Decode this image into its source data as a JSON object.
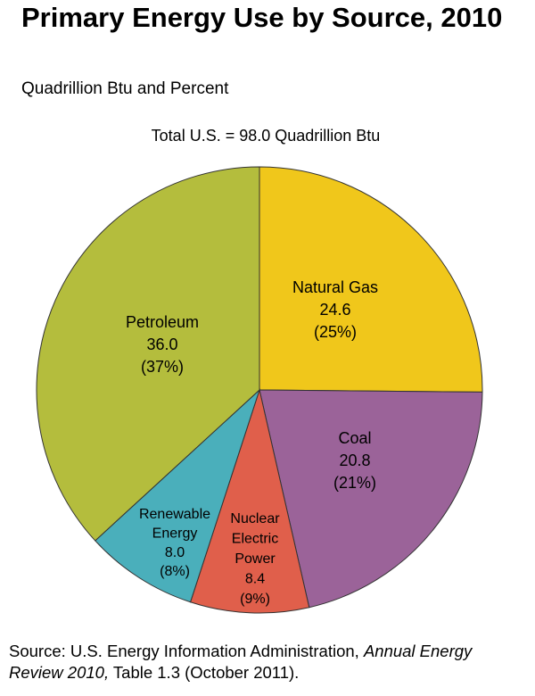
{
  "chart_data": {
    "type": "pie",
    "title": "Primary Energy Use by Source, 2010",
    "subtitle": "Quadrillion Btu and Percent",
    "annotation": "Total U.S. = 98.0 Quadrillion Btu",
    "categories": [
      "Natural Gas",
      "Coal",
      "Nuclear\nElectric\nPower",
      "Renewable\nEnergy",
      "Petroleum"
    ],
    "values": [
      24.6,
      20.8,
      8.4,
      8.0,
      36.0
    ],
    "value_labels": [
      "24.6",
      "20.8",
      "8.4",
      "8.0",
      "36.0"
    ],
    "percent_labels": [
      "(25%)",
      "(21%)",
      "(9%)",
      "(8%)",
      "(37%)"
    ],
    "colors": [
      "#f0c71b",
      "#9b6399",
      "#e05f4b",
      "#4aafbb",
      "#b4bd3d"
    ],
    "start_angle": 0,
    "direction": "clockwise"
  },
  "source": {
    "prefix": "Source: U.S. Energy Information Administration, ",
    "italic": "Annual Energy Review 2010,",
    "suffix": " Table 1.3 (October 2011)."
  }
}
